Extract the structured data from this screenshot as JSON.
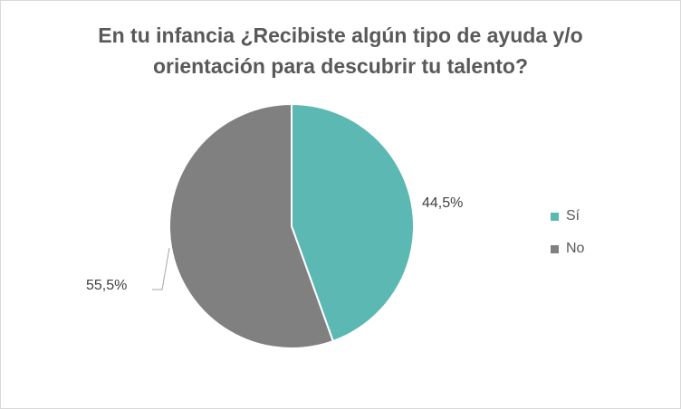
{
  "chart_data": {
    "type": "pie",
    "title_lines": [
      "En tu infancia ¿Recibiste algún tipo de ayuda y/o",
      "orientación para descubrir tu talento?"
    ],
    "categories": [
      "Sí",
      "No"
    ],
    "values": [
      44.5,
      55.5
    ],
    "data_labels": [
      "44,5%",
      "55,5%"
    ],
    "colors": [
      "#5bb8b2",
      "#808080"
    ],
    "legend_position": "right"
  }
}
